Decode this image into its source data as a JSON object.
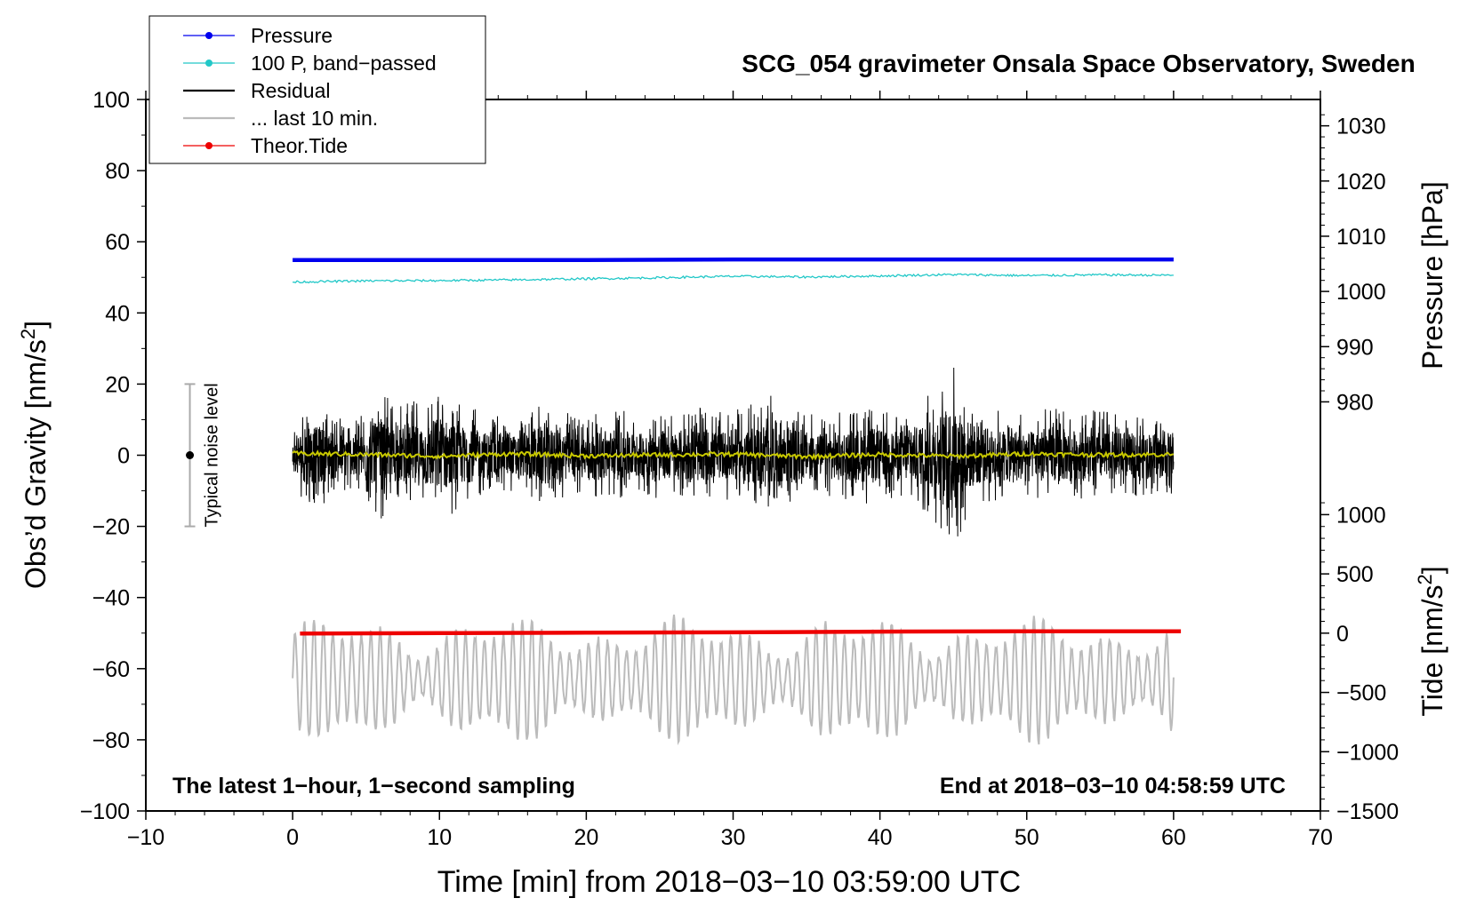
{
  "chart_data": {
    "type": "line",
    "title": "SCG_054 gravimeter Onsala Space Observatory, Sweden",
    "xlabel": "Time [min] from 2018−03−10 03:59:00 UTC",
    "ylabel_main": "Obs’d Gravity [nm/s",
    "ylabel_main_sup": "2",
    "ylabel_main_end": "]",
    "ylabel_pressure": "Pressure [hPa]",
    "ylabel_tide": "Tide [nm/s",
    "ylabel_tide_sup": "2",
    "ylabel_tide_end": "]",
    "xlim": [
      -10,
      70
    ],
    "ylim": [
      -100,
      100
    ],
    "xticks": [
      -10,
      0,
      10,
      20,
      30,
      40,
      50,
      60,
      70
    ],
    "xtick_labels": [
      "−10",
      "0",
      "10",
      "20",
      "30",
      "40",
      "50",
      "60",
      "70"
    ],
    "yticks": [
      -100,
      -80,
      -60,
      -40,
      -20,
      0,
      20,
      40,
      60,
      80,
      100
    ],
    "ytick_labels": [
      "−100",
      "−80",
      "−60",
      "−40",
      "−20",
      "0",
      "20",
      "40",
      "60",
      "80",
      "100"
    ],
    "pressure_axis": {
      "ticks": [
        980,
        990,
        1000,
        1010,
        1020,
        1030
      ],
      "tick_labels": [
        "980",
        "990",
        "1000",
        "1010",
        "1020",
        "1030"
      ],
      "anchor_ticks": [
        [
          980,
          15
        ],
        [
          1030,
          92.6
        ]
      ]
    },
    "tide_axis": {
      "ticks": [
        -1500,
        -1000,
        -500,
        0,
        500,
        1000
      ],
      "tick_labels": [
        "−1500",
        "−1000",
        "−500",
        "0",
        "500",
        "1000"
      ],
      "anchor_ticks": [
        [
          -1500,
          -100
        ],
        [
          1000,
          -16.7
        ]
      ]
    },
    "noise_indicator": {
      "label": "Typical noise level",
      "x": -7,
      "center": 0,
      "low": -20,
      "high": 20
    },
    "annotations": {
      "bottom_left": "The latest 1−hour, 1−second sampling",
      "bottom_right": "End at 2018−03−10 04:58:59 UTC"
    },
    "legend": [
      {
        "label": "Pressure",
        "color": "#0000ee",
        "marker": true
      },
      {
        "label": "100 P, band−passed",
        "color": "#22c8c8",
        "marker": true
      },
      {
        "label": "Residual",
        "color": "#000000",
        "marker": false
      },
      {
        "label": "... last 10 min.",
        "color": "#bbbbbb",
        "marker": false
      },
      {
        "label": "Theor.Tide",
        "color": "#ee0000",
        "marker": true
      }
    ],
    "series": [
      {
        "name": "Pressure",
        "color": "#0000ee",
        "x": [
          0,
          10,
          20,
          30,
          40,
          50,
          60
        ],
        "values": [
          1005.7,
          1005.7,
          1005.7,
          1005.8,
          1005.8,
          1005.8,
          1005.8
        ]
      },
      {
        "name": "100 P, band−passed",
        "color": "#22c8c8",
        "x": [
          0,
          5,
          10,
          15,
          20,
          25,
          30,
          35,
          40,
          45,
          50,
          55,
          60
        ],
        "values": [
          48.7,
          49.0,
          49.1,
          49.3,
          49.6,
          49.9,
          50.3,
          50.1,
          50.4,
          50.8,
          50.5,
          50.7,
          50.6
        ]
      },
      {
        "name": "Residual",
        "color": "#000000",
        "x": [
          0,
          1,
          2,
          3,
          4,
          5,
          6,
          7,
          8,
          9,
          10,
          11,
          12,
          13,
          14,
          15,
          16,
          17,
          18,
          19,
          20,
          21,
          22,
          23,
          24,
          25,
          26,
          27,
          28,
          29,
          30,
          31,
          32,
          33,
          34,
          35,
          36,
          37,
          38,
          39,
          40,
          41,
          42,
          43,
          44,
          45,
          46,
          47,
          48,
          49,
          50,
          51,
          52,
          53,
          54,
          55,
          56,
          57,
          58,
          59,
          60
        ],
        "amplitude": [
          8,
          15,
          14,
          12,
          10,
          13,
          18,
          14,
          15,
          16,
          20,
          16,
          14,
          12,
          11,
          10,
          12,
          15,
          13,
          12,
          11,
          12,
          13,
          12,
          11,
          13,
          12,
          14,
          13,
          12,
          13,
          14,
          16,
          18,
          14,
          12,
          11,
          12,
          13,
          14,
          13,
          12,
          14,
          16,
          20,
          26,
          18,
          14,
          13,
          14,
          12,
          13,
          14,
          13,
          12,
          13,
          12,
          11,
          12,
          11,
          12
        ]
      },
      {
        "name": "Residual smoothed",
        "color": "#c8c800",
        "x": [
          0,
          5,
          10,
          15,
          20,
          25,
          30,
          35,
          40,
          45,
          50,
          55,
          60
        ],
        "values": [
          0.5,
          0.2,
          -0.3,
          0.4,
          -0.2,
          0.1,
          0.3,
          -0.4,
          0.2,
          -0.3,
          0.4,
          0.1,
          0.2
        ]
      },
      {
        "name": "... last 10 min.",
        "color": "#bbbbbb",
        "x_range": [
          0,
          60
        ],
        "center": -63,
        "amplitude_range": [
          5,
          18
        ]
      },
      {
        "name": "Theor.Tide",
        "color": "#ee0000",
        "x": [
          0.5,
          10,
          20,
          30,
          40,
          50,
          60.5
        ],
        "values": [
          -50.1,
          -50.0,
          -49.9,
          -49.8,
          -49.6,
          -49.5,
          -49.5
        ]
      }
    ]
  }
}
